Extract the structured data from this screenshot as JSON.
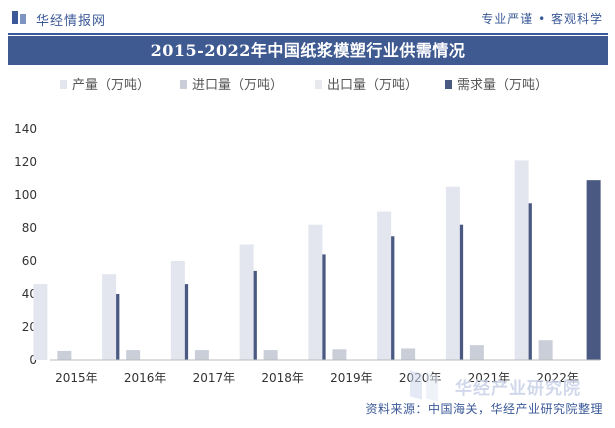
{
  "header": {
    "brand": "华经情报网",
    "tagline": "专业严谨 • 客观科学"
  },
  "footer": {
    "source": "资料来源：中国海关，华经产业研究院整理"
  },
  "watermark": {
    "text": "华经产业研究院"
  },
  "colors": {
    "header_blue": "#3b5998",
    "title_bar": "#3f5a91",
    "production": "#e3e6ef",
    "import": "#c9ced9",
    "export": "#e7e9ef",
    "demand": "#4a5982"
  },
  "chart_data": {
    "type": "bar",
    "title": "2015-2022年中国纸浆模塑行业供需情况",
    "xlabel": "",
    "ylabel": "",
    "categories": [
      "2015年",
      "2016年",
      "2017年",
      "2018年",
      "2019年",
      "2020年",
      "2021年",
      "2022年"
    ],
    "ylim": [
      0,
      140
    ],
    "yticks": [
      0,
      20,
      40,
      60,
      80,
      100,
      120,
      140
    ],
    "grid": false,
    "legend_position": "top",
    "series": [
      {
        "name": "产量（万吨）",
        "color": "#e3e6ef",
        "values": [
          46,
          52,
          60,
          70,
          82,
          90,
          105,
          121
        ]
      },
      {
        "name": "进口量（万吨）",
        "color": "#c9ced9",
        "values": [
          5.5,
          6,
          6,
          6,
          6.5,
          7,
          9,
          12
        ]
      },
      {
        "name": "出口量（万吨）",
        "color": "#e7e9ef",
        "values": [
          0.3,
          0.3,
          0.3,
          0.3,
          0.3,
          0.3,
          0.3,
          0.3
        ]
      },
      {
        "name": "需求量（万吨）",
        "color": "#4a5982",
        "values": [
          40,
          46,
          54,
          64,
          75,
          82,
          95,
          109
        ]
      }
    ]
  }
}
